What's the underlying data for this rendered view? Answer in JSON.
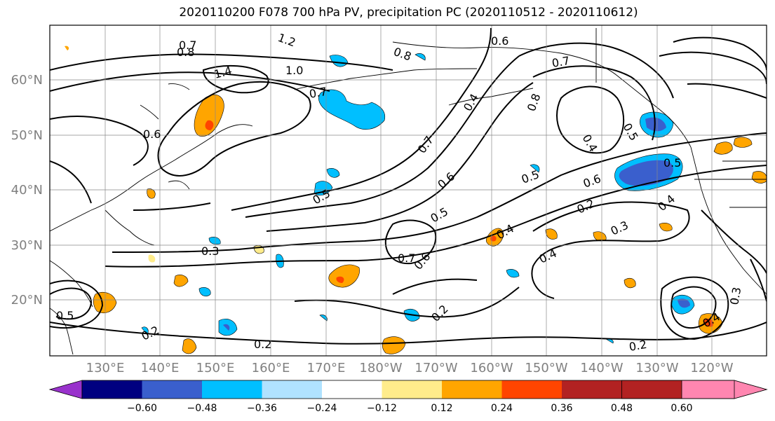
{
  "title": "2020110200 F078 700 hPa PV, precipitation PC (2020110512 - 2020110612)",
  "map": {
    "lat_ticks": [
      "60°N",
      "50°N",
      "40°N",
      "30°N",
      "20°N"
    ],
    "lon_ticks": [
      "130°E",
      "140°E",
      "150°E",
      "160°E",
      "170°E",
      "180°W",
      "170°W",
      "160°W",
      "150°W",
      "140°W",
      "130°W",
      "120°W"
    ],
    "contour_labels": [
      "1.2",
      "0.7",
      "0.8",
      "0.6",
      "0.8",
      "1.4",
      "1.0",
      "0.7",
      "0.6",
      "0.7",
      "0.8",
      "0.4",
      "0.5",
      "0.7",
      "0.6",
      "0.4",
      "0.5",
      "0.5",
      "0.7",
      "0.6",
      "0.4",
      "0.3",
      "0.2",
      "0.2",
      "0.2",
      "0.2",
      "0.3",
      "0.4",
      "0.6",
      "0.4",
      "0.5",
      "0.5",
      "0.4",
      "0.5",
      "0.3",
      "0.2"
    ]
  },
  "colorbar": {
    "ticks": [
      "−0.60",
      "−0.48",
      "−0.36",
      "−0.24",
      "−0.12",
      "0.12",
      "0.24",
      "0.36",
      "0.48",
      "0.60"
    ],
    "colors": [
      "#9932cc",
      "#000080",
      "#3a5fcd",
      "#00bfff",
      "#b0e2ff",
      "#ffffff",
      "#ffec8b",
      "#ffa500",
      "#ff4500",
      "#b22222",
      "#ff86b0"
    ]
  }
}
